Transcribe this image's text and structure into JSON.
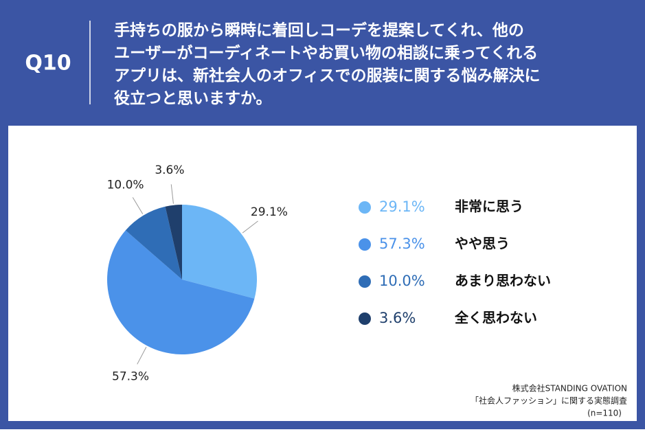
{
  "header": {
    "number": "Q10",
    "question": [
      "手持ちの服から瞬時に着回しコーデを提案してくれ、他の",
      "ユーザーがコーディネートやお買い物の相談に乗ってくれる",
      "アプリは、新社会人のオフィスでの服装に関する悩み解決に",
      "役立つと思いますか。"
    ]
  },
  "chart_data": {
    "type": "pie",
    "categories": [
      "非常に思う",
      "やや思う",
      "あまり思わない",
      "全く思わない"
    ],
    "values": [
      29.1,
      57.3,
      10.0,
      3.6
    ],
    "value_labels": [
      "29.1%",
      "57.3%",
      "10.0%",
      "3.6%"
    ],
    "colors": [
      "#6cb6f6",
      "#4b92e9",
      "#2f6db6",
      "#1f3f6c"
    ]
  },
  "source": [
    "株式会社STANDING OVATION",
    "「社会人ファッション」に関する実態調査",
    "(n=110)"
  ]
}
